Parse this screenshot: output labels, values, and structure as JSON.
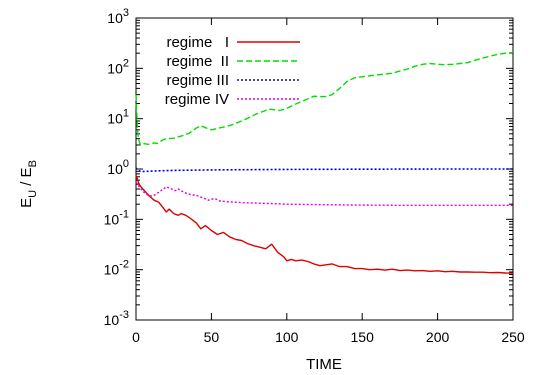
{
  "chart_data": {
    "type": "line",
    "x_scale": "linear",
    "y_scale": "log",
    "xlim": [
      0,
      250
    ],
    "ylim": [
      0.001,
      1000
    ],
    "xticks": [
      0,
      50,
      100,
      150,
      200,
      250
    ],
    "yticks": [
      0.001,
      0.01,
      0.1,
      1,
      10,
      100,
      1000
    ],
    "ytick_labels": [
      {
        "base": "10",
        "exp": "-3"
      },
      {
        "base": "10",
        "exp": "-2"
      },
      {
        "base": "10",
        "exp": "-1"
      },
      {
        "base": "10",
        "exp": "0"
      },
      {
        "base": "10",
        "exp": "1"
      },
      {
        "base": "10",
        "exp": "2"
      },
      {
        "base": "10",
        "exp": "3"
      }
    ],
    "xlabel": "TIME",
    "ylabel": {
      "E1": "E",
      "s1": "U",
      "sep": " / ",
      "E2": "E",
      "s2": "B"
    },
    "legend_position": "top-left",
    "grid": false,
    "series": [
      {
        "name": "regime   I",
        "color": "#e00000",
        "dash": "solid",
        "points": [
          [
            0,
            0.75
          ],
          [
            1,
            0.62
          ],
          [
            2,
            0.5
          ],
          [
            4,
            0.42
          ],
          [
            6,
            0.36
          ],
          [
            8,
            0.31
          ],
          [
            10,
            0.27
          ],
          [
            12,
            0.24
          ],
          [
            15,
            0.22
          ],
          [
            18,
            0.17
          ],
          [
            20,
            0.14
          ],
          [
            22,
            0.16
          ],
          [
            25,
            0.13
          ],
          [
            28,
            0.12
          ],
          [
            30,
            0.13
          ],
          [
            33,
            0.12
          ],
          [
            36,
            0.105
          ],
          [
            40,
            0.085
          ],
          [
            43,
            0.065
          ],
          [
            46,
            0.075
          ],
          [
            50,
            0.06
          ],
          [
            54,
            0.05
          ],
          [
            58,
            0.055
          ],
          [
            62,
            0.045
          ],
          [
            66,
            0.04
          ],
          [
            70,
            0.038
          ],
          [
            74,
            0.033
          ],
          [
            78,
            0.03
          ],
          [
            82,
            0.028
          ],
          [
            86,
            0.026
          ],
          [
            90,
            0.032
          ],
          [
            94,
            0.022
          ],
          [
            98,
            0.018
          ],
          [
            100,
            0.015
          ],
          [
            103,
            0.016
          ],
          [
            106,
            0.015
          ],
          [
            110,
            0.0155
          ],
          [
            114,
            0.0145
          ],
          [
            118,
            0.013
          ],
          [
            122,
            0.012
          ],
          [
            126,
            0.0125
          ],
          [
            130,
            0.013
          ],
          [
            135,
            0.0115
          ],
          [
            140,
            0.0115
          ],
          [
            145,
            0.0105
          ],
          [
            150,
            0.0105
          ],
          [
            155,
            0.01
          ],
          [
            160,
            0.0102
          ],
          [
            165,
            0.0098
          ],
          [
            170,
            0.0102
          ],
          [
            175,
            0.0096
          ],
          [
            180,
            0.0098
          ],
          [
            185,
            0.0095
          ],
          [
            190,
            0.0096
          ],
          [
            195,
            0.0093
          ],
          [
            200,
            0.0095
          ],
          [
            205,
            0.0091
          ],
          [
            210,
            0.0093
          ],
          [
            215,
            0.009
          ],
          [
            220,
            0.009
          ],
          [
            225,
            0.0089
          ],
          [
            230,
            0.0089
          ],
          [
            235,
            0.0087
          ],
          [
            240,
            0.0088
          ],
          [
            245,
            0.0086
          ],
          [
            250,
            0.0085
          ]
        ]
      },
      {
        "name": "regime  II",
        "color": "#00dd00",
        "dash": "6,3",
        "points": [
          [
            0,
            30
          ],
          [
            0.8,
            8
          ],
          [
            1.5,
            4
          ],
          [
            3,
            3
          ],
          [
            5,
            3.2
          ],
          [
            8,
            3.1
          ],
          [
            10,
            3.2
          ],
          [
            12,
            3.3
          ],
          [
            14,
            3.2
          ],
          [
            16,
            3.5
          ],
          [
            18,
            3.8
          ],
          [
            20,
            4.0
          ],
          [
            25,
            4.1
          ],
          [
            30,
            4.5
          ],
          [
            35,
            5.1
          ],
          [
            40,
            6.5
          ],
          [
            43,
            7.2
          ],
          [
            46,
            6.6
          ],
          [
            50,
            6.0
          ],
          [
            55,
            6.5
          ],
          [
            60,
            7.0
          ],
          [
            65,
            7.8
          ],
          [
            70,
            9.0
          ],
          [
            75,
            10.5
          ],
          [
            80,
            12.5
          ],
          [
            85,
            14.2
          ],
          [
            88,
            15.5
          ],
          [
            92,
            15
          ],
          [
            95,
            14.5
          ],
          [
            98,
            15.2
          ],
          [
            100,
            16
          ],
          [
            105,
            19
          ],
          [
            110,
            22
          ],
          [
            115,
            25.5
          ],
          [
            118,
            28
          ],
          [
            122,
            27.5
          ],
          [
            126,
            27.5
          ],
          [
            130,
            30
          ],
          [
            135,
            40
          ],
          [
            140,
            55
          ],
          [
            145,
            65
          ],
          [
            150,
            68
          ],
          [
            160,
            74
          ],
          [
            170,
            80
          ],
          [
            175,
            88
          ],
          [
            180,
            97
          ],
          [
            185,
            110
          ],
          [
            190,
            120
          ],
          [
            195,
            125
          ],
          [
            200,
            120
          ],
          [
            205,
            118
          ],
          [
            210,
            120
          ],
          [
            215,
            125
          ],
          [
            220,
            130
          ],
          [
            225,
            145
          ],
          [
            230,
            160
          ],
          [
            235,
            175
          ],
          [
            240,
            190
          ],
          [
            245,
            200
          ],
          [
            250,
            205
          ]
        ]
      },
      {
        "name": "regime III",
        "color": "#0000cc",
        "dash": "2,2",
        "points": [
          [
            0,
            1.05
          ],
          [
            1,
            0.95
          ],
          [
            2,
            0.92
          ],
          [
            3,
            0.9
          ],
          [
            5,
            0.89
          ],
          [
            8,
            0.9
          ],
          [
            15,
            0.92
          ],
          [
            25,
            0.94
          ],
          [
            50,
            0.96
          ],
          [
            100,
            0.98
          ],
          [
            150,
            0.99
          ],
          [
            200,
            1.0
          ],
          [
            250,
            1.0
          ]
        ]
      },
      {
        "name": "regime IV",
        "color": "#e000e0",
        "dash": "2,2",
        "points": [
          [
            0,
            0.55
          ],
          [
            2,
            0.45
          ],
          [
            5,
            0.35
          ],
          [
            8,
            0.3
          ],
          [
            10,
            0.29
          ],
          [
            13,
            0.31
          ],
          [
            17,
            0.38
          ],
          [
            20,
            0.44
          ],
          [
            23,
            0.41
          ],
          [
            26,
            0.37
          ],
          [
            28,
            0.4
          ],
          [
            32,
            0.34
          ],
          [
            36,
            0.31
          ],
          [
            40,
            0.3
          ],
          [
            44,
            0.27
          ],
          [
            48,
            0.24
          ],
          [
            52,
            0.26
          ],
          [
            56,
            0.23
          ],
          [
            60,
            0.225
          ],
          [
            65,
            0.22
          ],
          [
            70,
            0.215
          ],
          [
            80,
            0.21
          ],
          [
            90,
            0.205
          ],
          [
            100,
            0.2
          ],
          [
            125,
            0.195
          ],
          [
            150,
            0.192
          ],
          [
            175,
            0.19
          ],
          [
            200,
            0.19
          ],
          [
            225,
            0.19
          ],
          [
            250,
            0.19
          ]
        ]
      }
    ]
  }
}
